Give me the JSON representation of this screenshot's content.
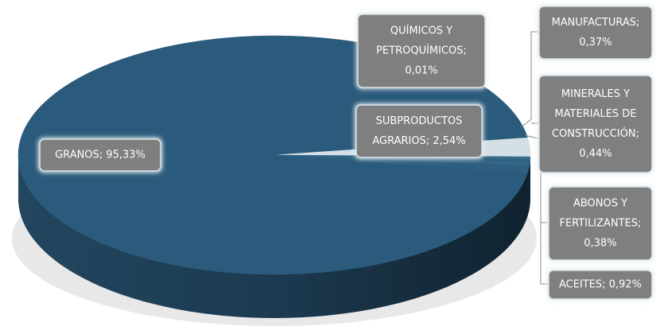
{
  "chart_data": {
    "type": "pie",
    "values": [
      95.33,
      0.01,
      2.54,
      0.37,
      0.44,
      0.38,
      0.92
    ],
    "value_labels": [
      [
        "GRANOS; 95,33%"
      ],
      [
        "QUÍMICOS Y",
        "PETROQUÍMICOS;",
        "0,01%"
      ],
      [
        "SUBPRODUCTOS",
        "AGRARIOS; 2,54%"
      ],
      [
        "MANUFACTURAS;",
        "0,37%"
      ],
      [
        "MINERALES Y",
        "MATERIALES DE",
        "CONSTRUCCIÓN;",
        "0,44%"
      ],
      [
        "ABONOS Y",
        "FERTILIZANTES;",
        "0,38%"
      ],
      [
        "ACEITES; 0,92%"
      ]
    ],
    "colors": [
      "#2b5b7c",
      "#3a6b8c",
      "#d4e0e6",
      "#386a8a",
      "#30627f",
      "#34668a",
      "#2f5f80"
    ]
  }
}
